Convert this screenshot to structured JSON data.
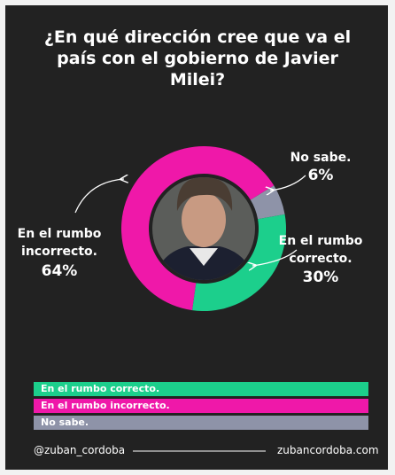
{
  "chart_data": {
    "type": "donut",
    "title": "¿En qué dirección cree que va el país con el gobierno de Javier Milei?",
    "categories": [
      "En el rumbo correcto.",
      "En el rumbo incorrecto.",
      "No sabe."
    ],
    "values": [
      30,
      64,
      6
    ],
    "value_labels": [
      "30%",
      "64%",
      "6%"
    ],
    "colors": [
      "#1ccf8c",
      "#ef18a9",
      "#8e93a8"
    ],
    "footer_left": "@zuban_cordoba",
    "footer_right": "zubancordoba.com"
  }
}
